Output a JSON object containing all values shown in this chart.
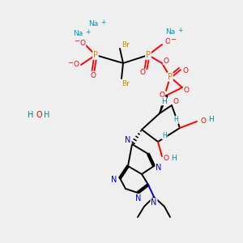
{
  "bg_color": "#efefef",
  "colors": {
    "C": "#000000",
    "N": "#0000dd",
    "O": "#ff0000",
    "P": "#cc8800",
    "Br": "#cc8800",
    "Na": "#0099bb",
    "H": "#008888",
    "bond": "#000000"
  },
  "figsize": [
    3.0,
    3.0
  ],
  "dpi": 100,
  "xlim": [
    0,
    300
  ],
  "ylim": [
    0,
    300
  ]
}
